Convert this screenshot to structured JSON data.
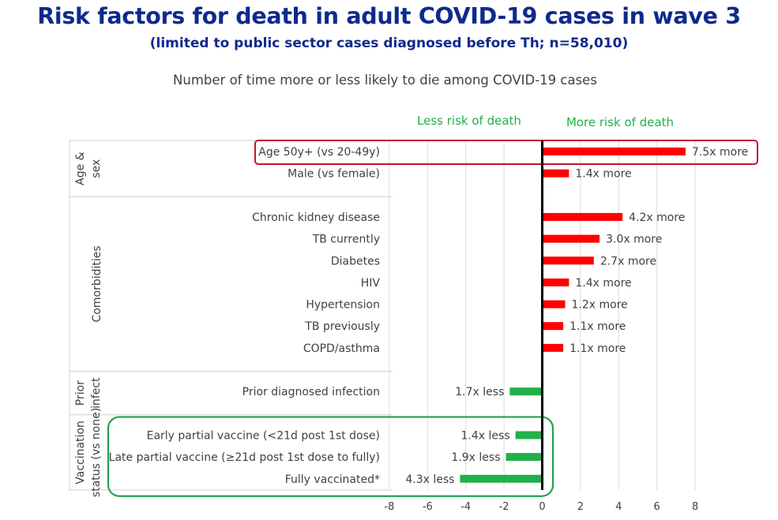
{
  "header": {
    "title": "Risk factors for death in adult COVID-19 cases in wave 3",
    "subtitle": "(limited to public sector cases diagnosed before Th; n=58,010)"
  },
  "colors": {
    "title": "#0e2a8c",
    "more_risk": "#ff0000",
    "less_risk": "#22b04b",
    "highlight_red": "#c0152f",
    "highlight_green": "#22a24a"
  },
  "chart_data": {
    "type": "bar",
    "orientation": "horizontal",
    "title": "Number of time more or less likely to die among COVID-19 cases",
    "direction_labels": {
      "left": "Less risk of death",
      "right": "More risk of death"
    },
    "xlim": [
      -8,
      8
    ],
    "xticks": [
      "-8",
      "-6",
      "-4",
      "-2",
      "0",
      "2",
      "4",
      "6",
      "8"
    ],
    "grid": true,
    "groups": [
      {
        "name": "Age & sex",
        "items": [
          {
            "label": "Age 50y+ (vs 20-49y)",
            "value": 7.5,
            "data_label": "7.5x more",
            "highlight": "red"
          },
          {
            "label": "Male (vs female)",
            "value": 1.4,
            "data_label": "1.4x more"
          }
        ]
      },
      {
        "name": "Comorbidities",
        "items": [
          {
            "label": "Chronic kidney disease",
            "value": 4.2,
            "data_label": "4.2x more"
          },
          {
            "label": "TB currently",
            "value": 3.0,
            "data_label": "3.0x more"
          },
          {
            "label": "Diabetes",
            "value": 2.7,
            "data_label": "2.7x more"
          },
          {
            "label": "HIV",
            "value": 1.4,
            "data_label": "1.4x more"
          },
          {
            "label": "Hypertension",
            "value": 1.2,
            "data_label": "1.2x more"
          },
          {
            "label": "TB previously",
            "value": 1.1,
            "data_label": "1.1x more"
          },
          {
            "label": "COPD/asthma",
            "value": 1.1,
            "data_label": "1.1x more"
          }
        ]
      },
      {
        "name": "Prior infect",
        "items": [
          {
            "label": "Prior diagnosed infection",
            "value": -1.7,
            "data_label": "1.7x less"
          }
        ]
      },
      {
        "name": "Vaccination status (vs none)",
        "items": [
          {
            "label": "Early partial vaccine (<21d post 1st dose)",
            "value": -1.4,
            "data_label": "1.4x less",
            "highlight": "green"
          },
          {
            "label": "Late partial vaccine (≥21d post 1st dose to fully)",
            "value": -1.9,
            "data_label": "1.9x less",
            "highlight": "green"
          },
          {
            "label": "Fully vaccinated*",
            "value": -4.3,
            "data_label": "4.3x less",
            "highlight": "green"
          }
        ]
      }
    ]
  }
}
